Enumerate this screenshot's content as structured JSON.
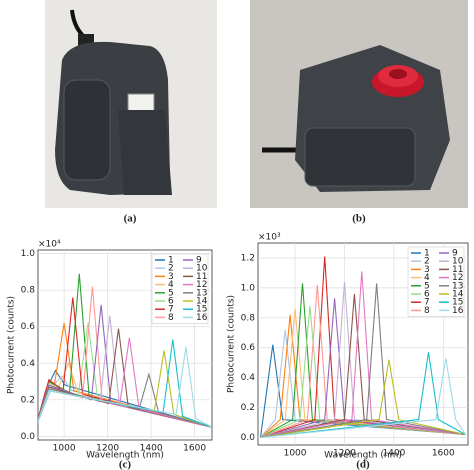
{
  "figure": {
    "labels": [
      "(a)",
      "(b)"
    ]
  },
  "chart_data": [
    {
      "type": "line",
      "caption": "(c)",
      "multiplier": "×10⁴",
      "xlabel": "Wavelength (nm)",
      "ylabel": "Photocurrent (counts)",
      "xlim": [
        880,
        1680
      ],
      "xticks": [
        1000,
        1200,
        1400,
        1600
      ],
      "ylim": [
        -0.02,
        1.02
      ],
      "yticks": [
        {
          "value": 0,
          "label": "0.0"
        },
        0.2,
        0.4,
        0.6,
        0.8,
        {
          "value": 1,
          "label": "1.0"
        }
      ],
      "grid": true,
      "legend": "upper right",
      "series": [
        {
          "name": "1",
          "color": "#1f77b4",
          "x": [
            870,
            915,
            960,
            1005,
            1680
          ],
          "values": [
            0.05,
            0.25,
            0.36,
            0.28,
            0.05
          ]
        },
        {
          "name": "2",
          "color": "#aec7e8",
          "x": [
            870,
            945,
            990,
            1035,
            1680
          ],
          "values": [
            0.05,
            0.27,
            0.33,
            0.25,
            0.05
          ]
        },
        {
          "name": "3",
          "color": "#ff7f0e",
          "x": [
            870,
            930,
            955,
            1000,
            1045,
            1680
          ],
          "values": [
            0.05,
            0.3,
            0.28,
            0.62,
            0.25,
            0.05
          ]
        },
        {
          "name": "4",
          "color": "#ffbb78",
          "x": [
            870,
            930,
            975,
            1020,
            1065,
            1680
          ],
          "values": [
            0.05,
            0.3,
            0.27,
            0.4,
            0.24,
            0.05
          ]
        },
        {
          "name": "5",
          "color": "#2ca02c",
          "x": [
            870,
            930,
            1025,
            1070,
            1115,
            1680
          ],
          "values": [
            0.05,
            0.3,
            0.24,
            0.89,
            0.22,
            0.05
          ]
        },
        {
          "name": "6",
          "color": "#98df8a",
          "x": [
            870,
            930,
            1065,
            1110,
            1155,
            1680
          ],
          "values": [
            0.05,
            0.29,
            0.22,
            0.62,
            0.2,
            0.05
          ]
        },
        {
          "name": "7",
          "color": "#d62728",
          "x": [
            870,
            930,
            995,
            1040,
            1085,
            1680
          ],
          "values": [
            0.05,
            0.31,
            0.25,
            0.76,
            0.23,
            0.05
          ]
        },
        {
          "name": "8",
          "color": "#ff9896",
          "x": [
            870,
            930,
            1085,
            1130,
            1175,
            1680
          ],
          "values": [
            0.05,
            0.28,
            0.21,
            0.82,
            0.19,
            0.05
          ]
        },
        {
          "name": "9",
          "color": "#9467bd",
          "x": [
            870,
            930,
            1125,
            1170,
            1215,
            1680
          ],
          "values": [
            0.05,
            0.28,
            0.2,
            0.72,
            0.18,
            0.05
          ]
        },
        {
          "name": "10",
          "color": "#c5b0d5",
          "x": [
            870,
            930,
            1165,
            1210,
            1255,
            1680
          ],
          "values": [
            0.05,
            0.27,
            0.19,
            0.66,
            0.17,
            0.05
          ]
        },
        {
          "name": "11",
          "color": "#8c564b",
          "x": [
            870,
            930,
            1205,
            1250,
            1295,
            1680
          ],
          "values": [
            0.05,
            0.27,
            0.18,
            0.59,
            0.16,
            0.05
          ]
        },
        {
          "name": "12",
          "color": "#e377c2",
          "x": [
            870,
            930,
            1255,
            1300,
            1345,
            1680
          ],
          "values": [
            0.05,
            0.26,
            0.17,
            0.54,
            0.15,
            0.05
          ]
        },
        {
          "name": "13",
          "color": "#7f7f7f",
          "x": [
            870,
            930,
            1345,
            1390,
            1435,
            1680
          ],
          "values": [
            0.05,
            0.26,
            0.15,
            0.34,
            0.13,
            0.05
          ]
        },
        {
          "name": "14",
          "color": "#bcbd22",
          "x": [
            870,
            930,
            1415,
            1460,
            1505,
            1680
          ],
          "values": [
            0.05,
            0.25,
            0.14,
            0.47,
            0.12,
            0.05
          ]
        },
        {
          "name": "15",
          "color": "#17becf",
          "x": [
            870,
            930,
            1455,
            1500,
            1545,
            1680
          ],
          "values": [
            0.05,
            0.25,
            0.13,
            0.53,
            0.11,
            0.05
          ]
        },
        {
          "name": "16",
          "color": "#9edae5",
          "x": [
            870,
            930,
            1515,
            1560,
            1605,
            1680
          ],
          "values": [
            0.05,
            0.25,
            0.12,
            0.49,
            0.1,
            0.05
          ]
        }
      ]
    },
    {
      "type": "line",
      "caption": "(d)",
      "multiplier": "×10³",
      "xlabel": "Wavelength (nm)",
      "ylabel": "Photocurrent (counts)",
      "xlim": [
        850,
        1700
      ],
      "xticks": [
        1000,
        1200,
        1400,
        1600
      ],
      "ylim": [
        -0.05,
        1.3
      ],
      "yticks": [
        {
          "value": 0,
          "label": "0.0"
        },
        0.2,
        0.4,
        0.6,
        0.8,
        {
          "value": 1,
          "label": "1.0"
        },
        1.2
      ],
      "grid": true,
      "legend": "upper right",
      "series": [
        {
          "name": "1",
          "color": "#1f77b4",
          "x": [
            860,
            870,
            910,
            950,
            1690
          ],
          "values": [
            0.0,
            0.12,
            0.62,
            0.12,
            0.02
          ]
        },
        {
          "name": "2",
          "color": "#aec7e8",
          "x": [
            860,
            920,
            960,
            1000,
            1690
          ],
          "values": [
            0.0,
            0.12,
            0.72,
            0.12,
            0.02
          ]
        },
        {
          "name": "3",
          "color": "#ff7f0e",
          "x": [
            860,
            940,
            980,
            1020,
            1690
          ],
          "values": [
            0.0,
            0.12,
            0.82,
            0.12,
            0.02
          ]
        },
        {
          "name": "4",
          "color": "#ffbb78",
          "x": [
            860,
            960,
            1000,
            1040,
            1690
          ],
          "values": [
            0.0,
            0.12,
            0.86,
            0.12,
            0.02
          ]
        },
        {
          "name": "5",
          "color": "#2ca02c",
          "x": [
            860,
            990,
            1030,
            1070,
            1690
          ],
          "values": [
            0.0,
            0.12,
            1.03,
            0.12,
            0.02
          ]
        },
        {
          "name": "6",
          "color": "#98df8a",
          "x": [
            860,
            1020,
            1060,
            1100,
            1690
          ],
          "values": [
            0.0,
            0.12,
            0.88,
            0.12,
            0.02
          ]
        },
        {
          "name": "7",
          "color": "#d62728",
          "x": [
            860,
            1080,
            1120,
            1160,
            1690
          ],
          "values": [
            0.0,
            0.12,
            1.21,
            0.12,
            0.02
          ]
        },
        {
          "name": "8",
          "color": "#ff9896",
          "x": [
            860,
            1050,
            1090,
            1130,
            1690
          ],
          "values": [
            0.0,
            0.12,
            1.02,
            0.12,
            0.02
          ]
        },
        {
          "name": "9",
          "color": "#9467bd",
          "x": [
            860,
            1120,
            1160,
            1200,
            1690
          ],
          "values": [
            0.0,
            0.12,
            0.93,
            0.12,
            0.02
          ]
        },
        {
          "name": "10",
          "color": "#c5b0d5",
          "x": [
            860,
            1160,
            1200,
            1240,
            1690
          ],
          "values": [
            0.0,
            0.12,
            1.04,
            0.12,
            0.02
          ]
        },
        {
          "name": "11",
          "color": "#8c564b",
          "x": [
            860,
            1200,
            1240,
            1280,
            1690
          ],
          "values": [
            0.0,
            0.12,
            0.96,
            0.12,
            0.02
          ]
        },
        {
          "name": "12",
          "color": "#e377c2",
          "x": [
            860,
            1230,
            1270,
            1310,
            1690
          ],
          "values": [
            0.0,
            0.12,
            1.11,
            0.12,
            0.02
          ]
        },
        {
          "name": "13",
          "color": "#7f7f7f",
          "x": [
            860,
            1290,
            1330,
            1370,
            1690
          ],
          "values": [
            0.0,
            0.12,
            1.03,
            0.12,
            0.02
          ]
        },
        {
          "name": "14",
          "color": "#bcbd22",
          "x": [
            860,
            1340,
            1380,
            1420,
            1690
          ],
          "values": [
            0.0,
            0.12,
            0.52,
            0.12,
            0.02
          ]
        },
        {
          "name": "15",
          "color": "#17becf",
          "x": [
            860,
            1500,
            1540,
            1580,
            1690
          ],
          "values": [
            0.0,
            0.12,
            0.57,
            0.12,
            0.02
          ]
        },
        {
          "name": "16",
          "color": "#9edae5",
          "x": [
            860,
            1570,
            1610,
            1650,
            1690
          ],
          "values": [
            0.0,
            0.12,
            0.53,
            0.12,
            0.02
          ]
        }
      ]
    }
  ]
}
